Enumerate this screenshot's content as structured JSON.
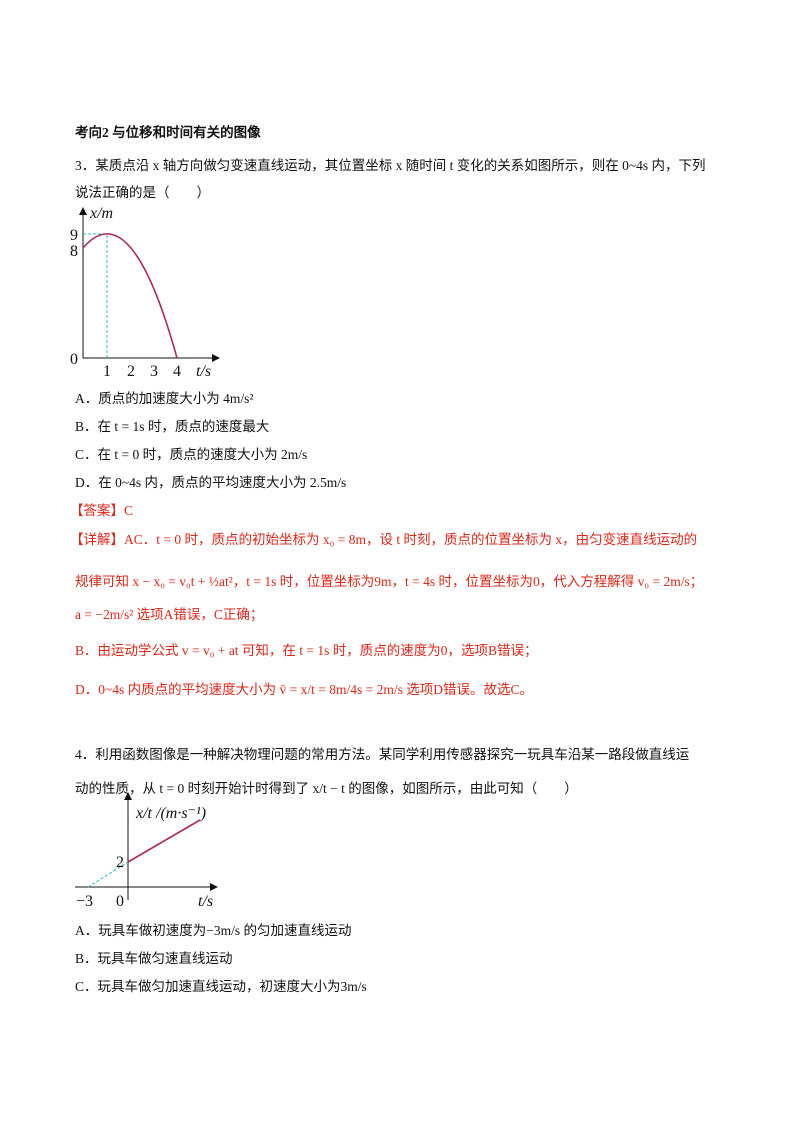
{
  "section_title": "考向2  与位移和时间有关的图像",
  "q3": {
    "stem": [
      "3．某质点沿 x 轴方向做匀变速直线运动，其位置坐标 x 随时间 t 变化的关系如图所示，则在 0~4s 内，下列",
      "说法正确的是（　　）"
    ],
    "figure": {
      "y_label": "x/m",
      "x_label": "t/s",
      "y_ticks": [
        "9",
        "8",
        "0"
      ],
      "x_ticks": [
        "1",
        "2",
        "3",
        "4"
      ]
    },
    "options": [
      "A．质点的加速度大小为 4m/s²",
      "B．在 t = 1s 时，质点的速度最大",
      "C．在 t = 0 时，质点的速度大小为 2m/s",
      "D．在 0~4s 内，质点的平均速度大小为 2.5m/s"
    ],
    "answer_label": "【答案】",
    "answer": "C",
    "explanation": [
      "【详解】AC．t = 0 时，质点的初始坐标为 x₀ = 8m，设 t 时刻，质点的位置坐标为 x，由匀变速直线运动的",
      "规律可知 x − x₀ = v₀t + ½at²，t = 1s 时，位置坐标为9m，t = 4s 时，位置坐标为0，代入方程解得 v₀ = 2m/s；",
      "a = −2m/s² 选项A错误，C正确；",
      "B．由运动学公式 v = v₀ + at 可知，在 t = 1s 时，质点的速度为0，选项B错误；",
      "D．0~4s 内质点的平均速度大小为 v̄ = x/t = 8m/4s = 2m/s 选项D错误。故选C。"
    ]
  },
  "q4": {
    "stem": [
      "4．利用函数图像是一种解决物理问题的常用方法。某同学利用传感器探究一玩具车沿某一路段做直线运",
      "动的性质，从 t = 0 时刻开始计时得到了 x/t − t 的图像，如图所示，由此可知（　　）"
    ],
    "figure": {
      "y_label": "x/t /(m·s⁻¹)",
      "x_label": "t/s",
      "y_tick": "2",
      "origin": "0",
      "x_tick": "−3"
    },
    "options": [
      "A．玩具车做初速度为−3m/s 的匀加速直线运动",
      "B．玩具车做匀速直线运动",
      "C．玩具车做匀加速直线运动，初速度大小为3m/s"
    ]
  }
}
